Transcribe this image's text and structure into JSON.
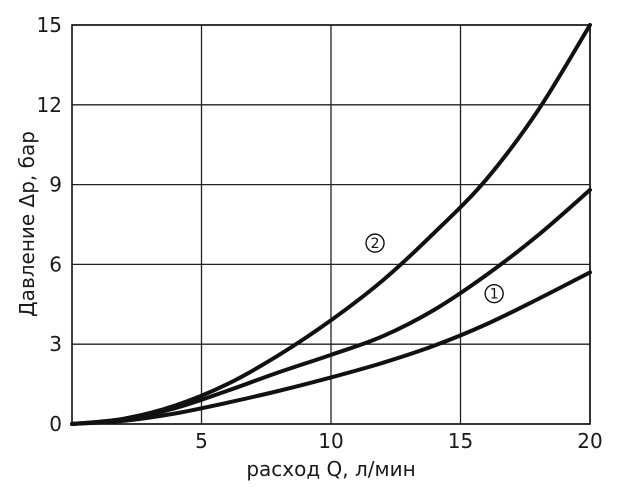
{
  "chart_data": {
    "type": "line",
    "xlabel": "расход Q, л/мин",
    "ylabel": "Давление Δp, бар",
    "xlim": [
      0,
      20
    ],
    "ylim": [
      0,
      15
    ],
    "xticks": [
      "5",
      "10",
      "15",
      "20"
    ],
    "yticks": [
      "0",
      "3",
      "6",
      "9",
      "12",
      "15"
    ],
    "grid": true,
    "series": [
      {
        "name": "1",
        "x": [
          0,
          2,
          4,
          6,
          8,
          10,
          12,
          14,
          16,
          18,
          20
        ],
        "y": [
          0,
          0.12,
          0.4,
          0.8,
          1.25,
          1.75,
          2.3,
          2.95,
          3.75,
          4.7,
          5.7
        ],
        "marker_at": [
          16.3,
          4.9
        ]
      },
      {
        "name": "",
        "x": [
          0,
          2,
          4,
          6,
          8,
          10,
          12,
          14,
          16,
          18,
          20
        ],
        "y": [
          0,
          0.18,
          0.6,
          1.25,
          1.95,
          2.6,
          3.3,
          4.3,
          5.6,
          7.1,
          8.8
        ]
      },
      {
        "name": "2",
        "x": [
          0,
          2,
          4,
          6,
          8,
          10,
          12,
          14,
          16,
          18,
          20
        ],
        "y": [
          0,
          0.2,
          0.7,
          1.5,
          2.6,
          3.9,
          5.4,
          7.2,
          9.2,
          11.8,
          15.0
        ],
        "marker_at": [
          11.7,
          6.8
        ]
      }
    ]
  }
}
